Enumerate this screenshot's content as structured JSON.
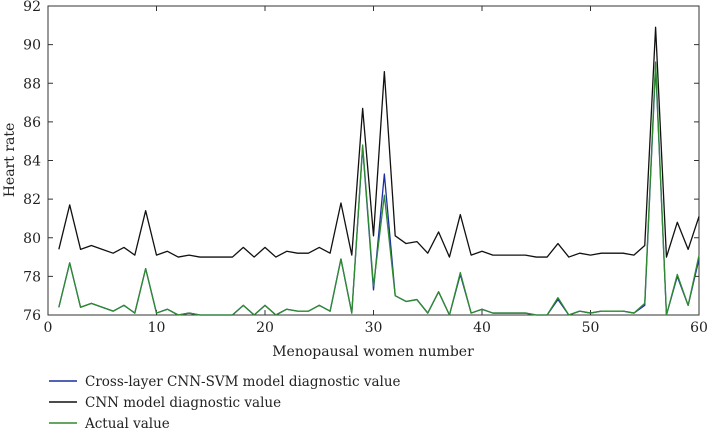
{
  "chart_data": {
    "type": "line",
    "title": "",
    "xlabel": "Menopausal women number",
    "ylabel": "Heart rate",
    "xlim": [
      0,
      60
    ],
    "ylim": [
      76,
      92
    ],
    "xticks": [
      0,
      10,
      20,
      30,
      40,
      50,
      60
    ],
    "yticks": [
      76,
      78,
      80,
      82,
      84,
      86,
      88,
      90,
      92
    ],
    "grid": false,
    "legend_placement": "bottom-left, below plot",
    "x": [
      1,
      2,
      3,
      4,
      5,
      6,
      7,
      8,
      9,
      10,
      11,
      12,
      13,
      14,
      15,
      16,
      17,
      18,
      19,
      20,
      21,
      22,
      23,
      24,
      25,
      26,
      27,
      28,
      29,
      30,
      31,
      32,
      33,
      34,
      35,
      36,
      37,
      38,
      39,
      40,
      41,
      42,
      43,
      44,
      45,
      46,
      47,
      48,
      49,
      50,
      51,
      52,
      53,
      54,
      55,
      56,
      57,
      58,
      59,
      60
    ],
    "series": [
      {
        "name": "Cross-layer CNN-SVM model diagnostic value",
        "color": "#1a2f9e",
        "values": [
          76.4,
          78.7,
          76.4,
          76.6,
          76.4,
          76.2,
          76.5,
          76.1,
          78.4,
          76.1,
          76.3,
          76.0,
          76.1,
          76.0,
          76.0,
          76.0,
          76.0,
          76.5,
          76.0,
          76.5,
          76.0,
          76.3,
          76.2,
          76.2,
          76.5,
          76.2,
          78.9,
          76.1,
          84.7,
          77.3,
          83.3,
          77.0,
          76.7,
          76.8,
          76.1,
          77.2,
          76.0,
          78.1,
          76.1,
          76.3,
          76.1,
          76.1,
          76.1,
          76.1,
          76.0,
          76.0,
          76.8,
          76.0,
          76.2,
          76.1,
          76.2,
          76.2,
          76.2,
          76.1,
          76.5,
          88.9,
          76.0,
          78.0,
          76.5,
          78.9
        ]
      },
      {
        "name": "CNN model diagnostic value",
        "color": "#111111",
        "values": [
          79.4,
          81.7,
          79.4,
          79.6,
          79.4,
          79.2,
          79.5,
          79.1,
          81.4,
          79.1,
          79.3,
          79.0,
          79.1,
          79.0,
          79.0,
          79.0,
          79.0,
          79.5,
          79.0,
          79.5,
          79.0,
          79.3,
          79.2,
          79.2,
          79.5,
          79.2,
          81.8,
          79.1,
          86.7,
          80.1,
          88.6,
          80.1,
          79.7,
          79.8,
          79.2,
          80.3,
          79.0,
          81.2,
          79.1,
          79.3,
          79.1,
          79.1,
          79.1,
          79.1,
          79.0,
          79.0,
          79.7,
          79.0,
          79.2,
          79.1,
          79.2,
          79.2,
          79.2,
          79.1,
          79.6,
          90.9,
          79.0,
          80.8,
          79.4,
          81.1
        ]
      },
      {
        "name": "Actual value",
        "color": "#2e8b2e",
        "values": [
          76.4,
          78.7,
          76.4,
          76.6,
          76.4,
          76.2,
          76.5,
          76.1,
          78.4,
          76.1,
          76.3,
          76.0,
          76.1,
          76.0,
          76.0,
          76.0,
          76.0,
          76.5,
          76.0,
          76.5,
          76.0,
          76.3,
          76.2,
          76.2,
          76.5,
          76.2,
          78.9,
          76.1,
          84.8,
          77.5,
          82.2,
          77.0,
          76.7,
          76.8,
          76.1,
          77.2,
          76.0,
          78.2,
          76.1,
          76.3,
          76.1,
          76.1,
          76.1,
          76.1,
          76.0,
          76.0,
          76.9,
          76.0,
          76.2,
          76.1,
          76.2,
          76.2,
          76.2,
          76.1,
          76.6,
          89.1,
          76.0,
          78.1,
          76.5,
          79.1
        ]
      }
    ]
  }
}
